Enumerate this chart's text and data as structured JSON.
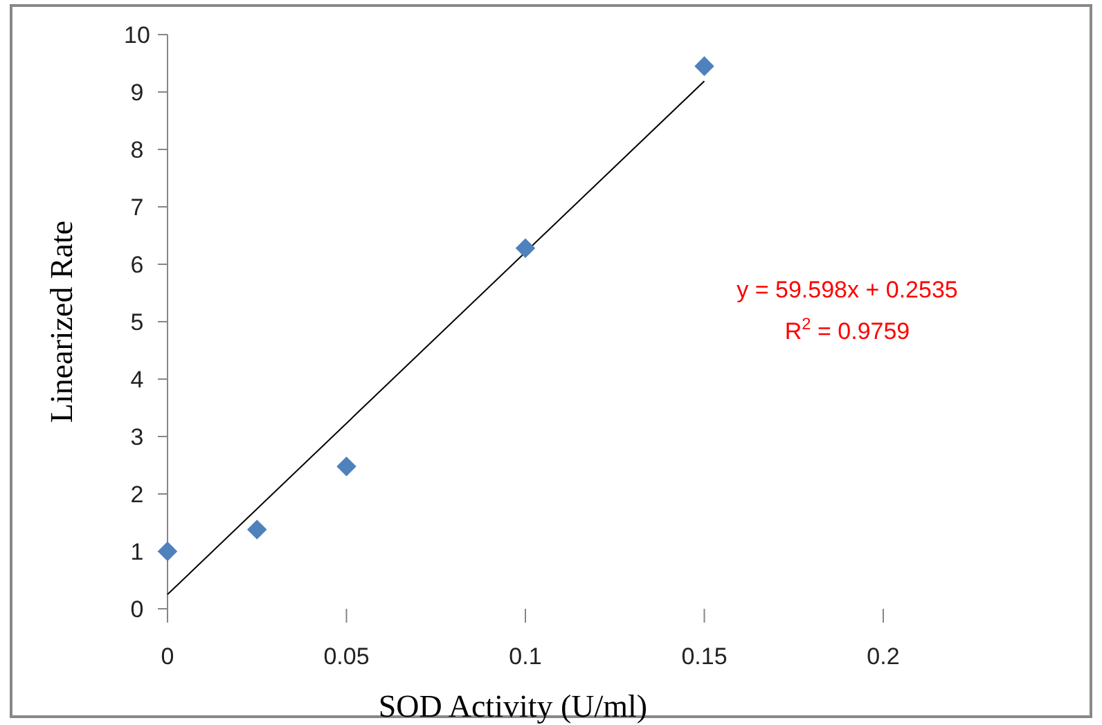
{
  "chart_data": {
    "type": "scatter",
    "xlabel": "SOD Activity (U/ml)",
    "ylabel": "Linearized Rate",
    "series": [
      {
        "color": "#4f81bd",
        "marker": "diamond",
        "x": [
          0,
          0.025,
          0.05,
          0.1,
          0.15
        ],
        "values": [
          1.0,
          1.38,
          2.48,
          6.28,
          9.45
        ]
      },
      {
        "type": "line",
        "color": "#000000",
        "x": [
          0,
          0.15
        ],
        "values": [
          0.25,
          9.19
        ]
      }
    ],
    "xlim": [
      0,
      0.2
    ],
    "xticks": [
      0,
      0.05,
      0.1,
      0.15,
      0.2
    ],
    "ylim": [
      0,
      10
    ],
    "yticks": [
      0,
      1,
      2,
      3,
      4,
      5,
      6,
      7,
      8,
      9,
      10
    ],
    "grid": false,
    "annotations": [
      "y = 59.598x + 0.2535",
      "R$^{2}$ = 0.9759"
    ]
  }
}
